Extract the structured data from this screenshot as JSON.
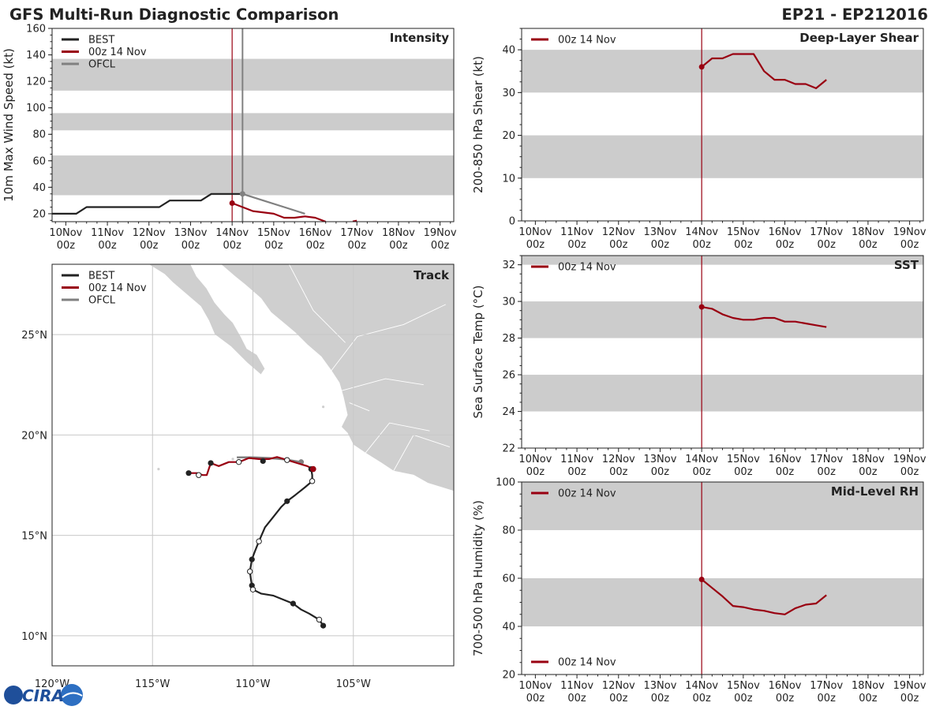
{
  "header": {
    "title": "GFS Multi-Run Diagnostic Comparison",
    "storm_id": "EP21 - EP212016"
  },
  "logo": {
    "text": "CIRA"
  },
  "colors": {
    "best": "#222222",
    "run": "#990011",
    "ofcl": "#808080",
    "band": "#cccccc",
    "land": "#cfcfcf",
    "grid": "#c8c8c8"
  },
  "time_axis": {
    "days": [
      "10Nov",
      "11Nov",
      "12Nov",
      "13Nov",
      "14Nov",
      "15Nov",
      "16Nov",
      "17Nov",
      "18Nov",
      "19Nov"
    ],
    "hour_label": "00z",
    "xlim": [
      9.67,
      19.33
    ],
    "run_time": 14.0
  },
  "chart_data": [
    {
      "id": "intensity",
      "type": "line",
      "title": "Intensity",
      "ylabel": "10m Max Wind Speed (kt)",
      "ylim": [
        14,
        160
      ],
      "yticks": [
        20,
        40,
        60,
        80,
        100,
        120,
        140,
        160
      ],
      "bands": [
        [
          34,
          64
        ],
        [
          83,
          96
        ],
        [
          113,
          137
        ]
      ],
      "official_time": 14.25,
      "legend": [
        "BEST",
        "00z 14 Nov",
        "OFCL"
      ],
      "series": [
        {
          "name": "BEST",
          "style": "best",
          "x": [
            9.67,
            10.25,
            10.5,
            12.25,
            12.5,
            13.25,
            13.5,
            14.25
          ],
          "y": [
            20,
            20,
            25,
            25,
            30,
            30,
            35,
            35
          ]
        },
        {
          "name": "00z 14 Nov",
          "style": "run",
          "x": [
            14.0,
            14.25,
            14.5,
            15.0,
            15.25,
            15.5,
            15.75,
            16.0,
            16.25
          ],
          "y": [
            28,
            25,
            22,
            20,
            17,
            17,
            18,
            17,
            14
          ]
        },
        {
          "name": "00z 14 Nov tail",
          "style": "run",
          "x": [
            16.9,
            17.0
          ],
          "y": [
            14.2,
            14.8
          ]
        },
        {
          "name": "OFCL",
          "style": "ofcl",
          "x": [
            14.25,
            14.75,
            15.25,
            15.75
          ],
          "y": [
            35,
            30,
            25,
            20
          ]
        }
      ],
      "markers": [
        {
          "style": "run",
          "x": 14.0,
          "y": 28
        },
        {
          "style": "ofcl",
          "x": 14.25,
          "y": 35
        }
      ]
    },
    {
      "id": "shear",
      "type": "line",
      "title": "Deep-Layer Shear",
      "ylabel": "200-850 hPa Shear (kt)",
      "ylim": [
        0,
        45
      ],
      "yticks": [
        0,
        10,
        20,
        30,
        40
      ],
      "bands": [
        [
          10,
          20
        ],
        [
          30,
          40
        ]
      ],
      "legend": [
        "00z 14 Nov"
      ],
      "series": [
        {
          "name": "00z 14 Nov",
          "style": "run",
          "x": [
            14.0,
            14.25,
            14.5,
            14.75,
            15.0,
            15.25,
            15.5,
            15.75,
            16.0,
            16.25,
            16.5,
            16.75,
            17.0
          ],
          "y": [
            36,
            38,
            38,
            39,
            39,
            39,
            35,
            33,
            33,
            32,
            32,
            31,
            33
          ]
        }
      ],
      "markers": [
        {
          "style": "run",
          "x": 14.0,
          "y": 36
        }
      ]
    },
    {
      "id": "sst",
      "type": "line",
      "title": "SST",
      "ylabel": "Sea Surface Temp (°C)",
      "ylim": [
        22,
        32.5
      ],
      "yticks": [
        22,
        24,
        26,
        28,
        30,
        32
      ],
      "bands": [
        [
          24,
          26
        ],
        [
          28,
          30
        ],
        [
          32,
          34
        ]
      ],
      "legend": [
        "00z 14 Nov"
      ],
      "series": [
        {
          "name": "00z 14 Nov",
          "style": "run",
          "x": [
            14.0,
            14.25,
            14.5,
            14.75,
            15.0,
            15.25,
            15.5,
            15.75,
            16.0,
            16.25,
            16.5,
            16.75,
            17.0
          ],
          "y": [
            29.7,
            29.6,
            29.3,
            29.1,
            29.0,
            29.0,
            29.1,
            29.1,
            28.9,
            28.9,
            28.8,
            28.7,
            28.6
          ]
        }
      ],
      "markers": [
        {
          "style": "run",
          "x": 14.0,
          "y": 29.7
        }
      ]
    },
    {
      "id": "rh",
      "type": "line",
      "title": "Mid-Level RH",
      "ylabel": "700-500 hPa Humidity (%)",
      "ylim": [
        20,
        100
      ],
      "yticks": [
        20,
        40,
        60,
        80,
        100
      ],
      "bands": [
        [
          40,
          60
        ],
        [
          80,
          100
        ]
      ],
      "legend": [
        "00z 14 Nov"
      ],
      "series": [
        {
          "name": "00z 14 Nov",
          "style": "run",
          "x": [
            14.0,
            14.25,
            14.5,
            14.75,
            15.0,
            15.25,
            15.5,
            15.75,
            16.0,
            16.25,
            16.5,
            16.75,
            17.0
          ],
          "y": [
            59.5,
            56,
            52.5,
            48.5,
            48,
            47,
            46.5,
            45.5,
            45,
            47.5,
            49,
            49.5,
            53
          ]
        }
      ],
      "markers": [
        {
          "style": "run",
          "x": 14.0,
          "y": 59.5
        }
      ]
    },
    {
      "id": "track",
      "type": "map-track",
      "title": "Track",
      "lon_range": [
        -120,
        -100
      ],
      "lat_range": [
        8.5,
        28.5
      ],
      "lon_ticks": [
        -120,
        -115,
        -110,
        -105
      ],
      "lon_labels": [
        "120°W",
        "115°W",
        "110°W",
        "105°W"
      ],
      "lat_ticks": [
        10,
        15,
        20,
        25
      ],
      "lat_labels": [
        "10°N",
        "15°N",
        "20°N",
        "25°N"
      ],
      "legend": [
        "BEST",
        "00z 14 Nov",
        "OFCL"
      ],
      "best_track": {
        "lon": [
          -106.5,
          -106.7,
          -107.2,
          -107.6,
          -108.0,
          -108.5,
          -109.0,
          -109.6,
          -110.0,
          -110.05,
          -110.1,
          -110.15,
          -110.05,
          -109.9,
          -109.7,
          -109.4,
          -109.0,
          -108.6,
          -108.3,
          -107.9,
          -107.4,
          -107.05,
          -107.05,
          -107.1
        ],
        "lat": [
          10.5,
          10.8,
          11.1,
          11.3,
          11.6,
          11.8,
          12.0,
          12.1,
          12.3,
          12.5,
          12.8,
          13.2,
          13.8,
          14.2,
          14.7,
          15.4,
          15.9,
          16.4,
          16.7,
          17.0,
          17.4,
          17.7,
          18.0,
          18.3
        ],
        "filled_idx": [
          0,
          4,
          9,
          12,
          18,
          23
        ],
        "open_idx": [
          1,
          8,
          11,
          14,
          21
        ]
      },
      "run_track": {
        "lon": [
          -107.0,
          -107.3,
          -107.8,
          -108.3,
          -108.8,
          -109.2,
          -109.7,
          -110.2,
          -110.7,
          -111.2,
          -111.7,
          -112.1,
          -112.3,
          -112.5,
          -112.8,
          -113.2
        ],
        "lat": [
          18.3,
          18.45,
          18.6,
          18.75,
          18.9,
          18.8,
          18.8,
          18.85,
          18.65,
          18.65,
          18.45,
          18.6,
          18.0,
          18.0,
          18.1,
          18.1
        ]
      },
      "run_filled": [
        0
      ],
      "run_open_pts": [
        {
          "lon": -112.7,
          "lat": 18.0
        }
      ],
      "best_dots_west": {
        "filled": [
          {
            "lon": -113.2,
            "lat": 18.1
          },
          {
            "lon": -112.1,
            "lat": 18.6
          },
          {
            "lon": -109.5,
            "lat": 18.7
          }
        ],
        "open": [
          {
            "lon": -110.7,
            "lat": 18.65
          },
          {
            "lon": -108.3,
            "lat": 18.75
          }
        ]
      },
      "ofcl_track": {
        "lon": [
          -107.6,
          -108.4,
          -109.2,
          -110.0,
          -110.8
        ],
        "lat": [
          18.65,
          18.78,
          18.85,
          18.88,
          18.88
        ]
      },
      "ofcl_filled": [
        0
      ]
    }
  ]
}
